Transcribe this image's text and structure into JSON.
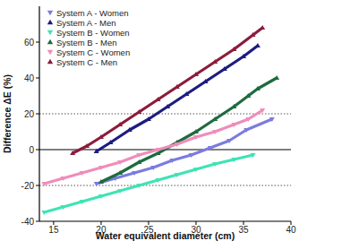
{
  "chart_data": {
    "type": "scatter",
    "x_label": "Water equivalent diameter (cm)",
    "y_label": "Difference ΔE (%)",
    "xlim": [
      13.5,
      40
    ],
    "ylim": [
      -40,
      80
    ],
    "xticks": [
      15,
      20,
      25,
      30,
      35,
      40
    ],
    "yticks": [
      -40,
      -20,
      0,
      20,
      40,
      60
    ],
    "reference_lines": [
      -20,
      0,
      20
    ],
    "grid": false,
    "legend": "top-left",
    "line_style": "solid",
    "series": [
      {
        "name": "System A - Women",
        "color": "#7b7be0",
        "marker": "triangle-down",
        "x": [
          19.5,
          21.5,
          23.5,
          25.5,
          27.5,
          29.5,
          31.5,
          33.5,
          35.3,
          38
        ],
        "values": [
          -19,
          -16,
          -13,
          -10,
          -6,
          -3,
          1,
          5,
          11,
          17
        ]
      },
      {
        "name": "System A - Men",
        "color": "#1c1c80",
        "marker": "triangle-up",
        "x": [
          19.5,
          21,
          23,
          25,
          27,
          29,
          31,
          33,
          35,
          36.5
        ],
        "values": [
          -1,
          4,
          11,
          17,
          24,
          31,
          38,
          45,
          52,
          58
        ]
      },
      {
        "name": "System B - Women",
        "color": "#3fe3b5",
        "marker": "triangle-down",
        "x": [
          14,
          16,
          18,
          20,
          22,
          24,
          26,
          28,
          30,
          32,
          34,
          36
        ],
        "values": [
          -35,
          -32,
          -29,
          -26,
          -23,
          -20,
          -17,
          -14,
          -11,
          -8,
          -5.5,
          -3
        ]
      },
      {
        "name": "System B - Men",
        "color": "#1d6b3e",
        "marker": "triangle-up",
        "x": [
          20,
          22,
          24,
          26,
          28,
          30,
          32,
          34,
          35.5,
          36.5,
          38.5
        ],
        "values": [
          -18,
          -13,
          -7,
          -2,
          4,
          10,
          17,
          24,
          30,
          34,
          40
        ]
      },
      {
        "name": "System C - Women",
        "color": "#f08cba",
        "marker": "triangle-down",
        "x": [
          14,
          16,
          18,
          20,
          22,
          24,
          26,
          28,
          30,
          32,
          34,
          35.5,
          37
        ],
        "values": [
          -19,
          -16,
          -13,
          -10,
          -7,
          -3,
          0,
          3,
          7,
          10,
          14,
          17,
          22
        ]
      },
      {
        "name": "System C - Men",
        "color": "#8b1c3c",
        "marker": "triangle-up",
        "x": [
          17,
          18.5,
          20,
          22,
          24,
          26,
          28,
          30,
          32,
          34,
          36,
          37
        ],
        "values": [
          -2,
          2,
          7,
          14,
          21,
          28,
          35,
          42,
          49,
          56,
          64,
          68
        ]
      }
    ]
  }
}
